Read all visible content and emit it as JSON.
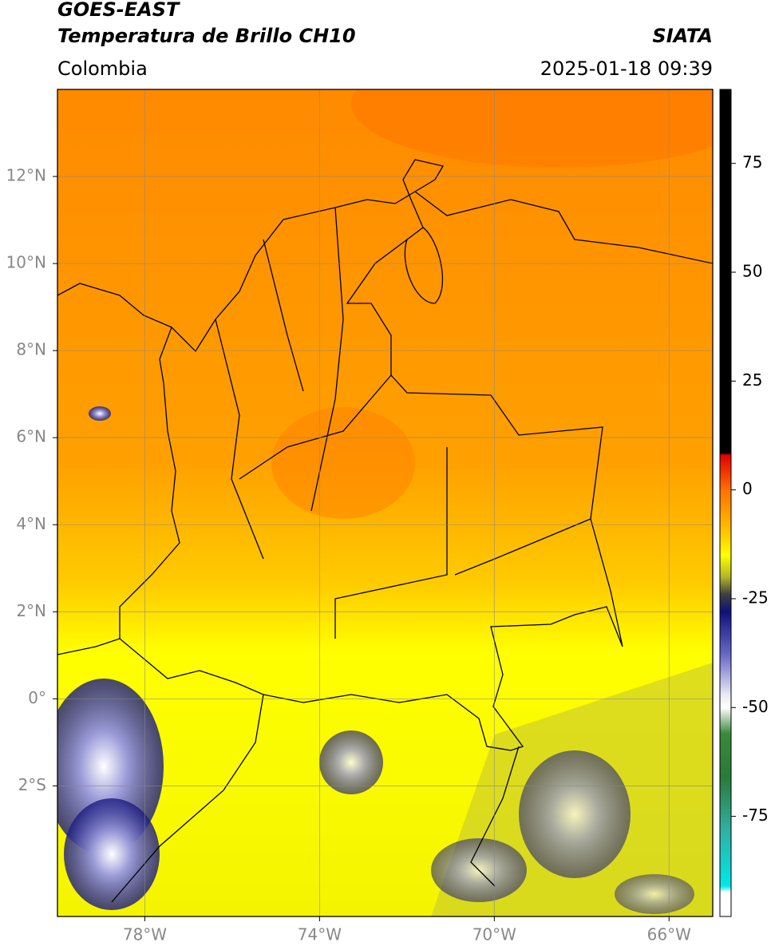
{
  "header": {
    "title": "GOES-EAST",
    "subtitle": "Temperatura de Brillo CH10",
    "source": "SIATA",
    "region": "Colombia",
    "timestamp": "2025-01-18 09:39"
  },
  "map": {
    "xlim": [
      -80,
      -65
    ],
    "ylim": [
      -5,
      14
    ],
    "xticks": [
      {
        "value": -78,
        "label": "78°W"
      },
      {
        "value": -74,
        "label": "74°W"
      },
      {
        "value": -70,
        "label": "70°W"
      },
      {
        "value": -66,
        "label": "66°W"
      }
    ],
    "yticks": [
      {
        "value": 12,
        "label": "12°N"
      },
      {
        "value": 10,
        "label": "10°N"
      },
      {
        "value": 8,
        "label": "8°N"
      },
      {
        "value": 6,
        "label": "6°N"
      },
      {
        "value": 4,
        "label": "4°N"
      },
      {
        "value": 2,
        "label": "2°N"
      },
      {
        "value": 0,
        "label": "0°"
      },
      {
        "value": -2,
        "label": "2°S"
      }
    ],
    "grid": true
  },
  "colorbar": {
    "lim": [
      -98,
      92
    ],
    "ticks": [
      75,
      50,
      25,
      0,
      -25,
      -50,
      -75
    ],
    "colormap": [
      {
        "value": 92,
        "color": "#000000"
      },
      {
        "value": 8.5,
        "color": "#000000"
      },
      {
        "value": 8,
        "color": "#e00000"
      },
      {
        "value": 0,
        "color": "#ff7000"
      },
      {
        "value": -10,
        "color": "#ffc800"
      },
      {
        "value": -15,
        "color": "#ffff00"
      },
      {
        "value": -20,
        "color": "#b4b428"
      },
      {
        "value": -24,
        "color": "#404040"
      },
      {
        "value": -28,
        "color": "#10107a"
      },
      {
        "value": -38,
        "color": "#6a6ac8"
      },
      {
        "value": -47,
        "color": "#e8e8f4"
      },
      {
        "value": -50,
        "color": "#ffffff"
      },
      {
        "value": -56,
        "color": "#3a8a3a"
      },
      {
        "value": -66,
        "color": "#2a7a3a"
      },
      {
        "value": -78,
        "color": "#30b0a0"
      },
      {
        "value": -91,
        "color": "#00e8e8"
      },
      {
        "value": -92.5,
        "color": "#ffffff"
      },
      {
        "value": -98,
        "color": "#ffffff"
      }
    ]
  }
}
